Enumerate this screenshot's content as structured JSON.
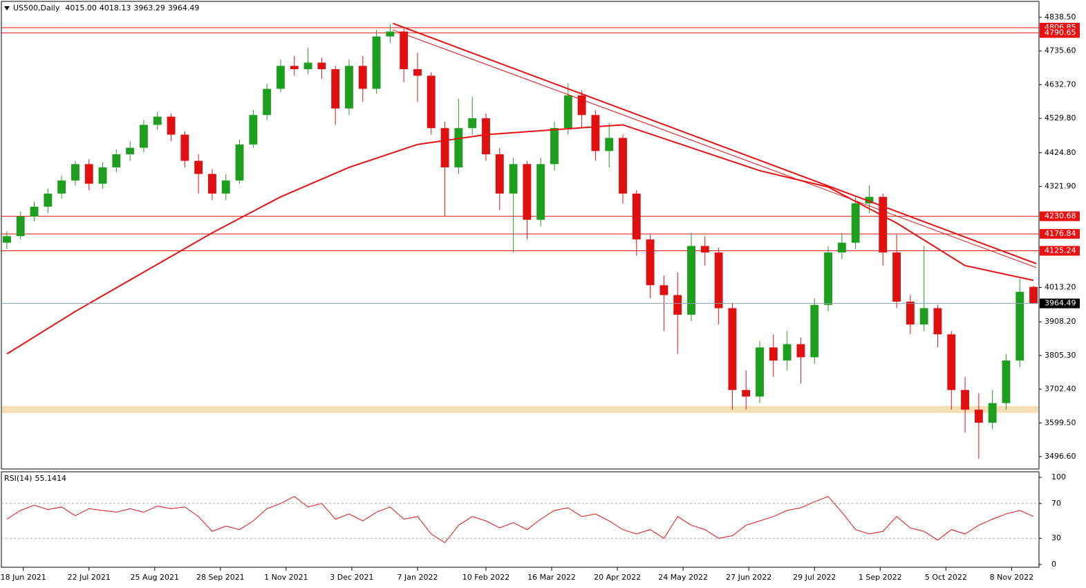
{
  "chart_data": {
    "type": "candlestick",
    "title": "US500,Daily",
    "x": [
      0,
      5,
      10,
      15,
      20,
      25,
      30,
      35,
      40,
      45,
      50,
      55,
      60,
      65,
      70,
      75,
      80,
      85,
      90,
      95,
      100,
      105,
      110,
      115,
      120,
      125,
      130,
      135,
      140,
      145,
      150,
      155,
      160,
      165,
      170,
      175,
      180,
      185,
      190,
      195,
      200,
      205,
      210,
      215,
      220,
      225,
      230,
      235,
      240,
      245,
      250,
      255,
      260,
      265,
      270,
      275,
      280,
      285,
      290,
      295,
      300,
      305,
      310,
      315,
      320,
      325,
      330,
      335,
      340,
      345,
      350,
      355,
      360,
      365,
      370,
      375
    ],
    "open": [
      4150,
      4170,
      4230,
      4260,
      4300,
      4340,
      4390,
      4330,
      4380,
      4420,
      4440,
      4510,
      4535,
      4480,
      4400,
      4360,
      4300,
      4340,
      4450,
      4540,
      4620,
      4690,
      4680,
      4700,
      4680,
      4560,
      4690,
      4620,
      4780,
      4795,
      4680,
      4660,
      4500,
      4380,
      4500,
      4530,
      4420,
      4300,
      4390,
      4220,
      4390,
      4500,
      4600,
      4540,
      4430,
      4470,
      4300,
      4160,
      4020,
      3990,
      3930,
      4140,
      4120,
      3950,
      3700,
      3680,
      3830,
      3790,
      3840,
      3800,
      3960,
      4120,
      4150,
      4270,
      4290,
      4120,
      3970,
      3900,
      3950,
      3870,
      3700,
      3640,
      3600,
      3660,
      3790,
      4015.0
    ],
    "high": [
      4185,
      4245,
      4275,
      4315,
      4355,
      4400,
      4405,
      4395,
      4435,
      4460,
      4525,
      4550,
      4545,
      4490,
      4420,
      4375,
      4360,
      4465,
      4555,
      4635,
      4710,
      4720,
      4745,
      4715,
      4690,
      4710,
      4720,
      4800,
      4818,
      4805,
      4730,
      4670,
      4520,
      4590,
      4595,
      4545,
      4440,
      4410,
      4400,
      4410,
      4520,
      4637,
      4615,
      4555,
      4515,
      4480,
      4310,
      4175,
      4050,
      4060,
      4180,
      4170,
      4135,
      3965,
      3760,
      3850,
      3870,
      3880,
      3860,
      3980,
      4140,
      4180,
      4290,
      4325,
      4300,
      4175,
      3990,
      4140,
      3960,
      3880,
      3740,
      3690,
      3700,
      3810,
      4040,
      4018.13
    ],
    "low": [
      4130,
      4160,
      4215,
      4240,
      4285,
      4325,
      4310,
      4315,
      4365,
      4400,
      4425,
      4495,
      4460,
      4380,
      4300,
      4280,
      4280,
      4330,
      4440,
      4525,
      4610,
      4660,
      4665,
      4650,
      4510,
      4540,
      4580,
      4605,
      4760,
      4640,
      4580,
      4480,
      4230,
      4360,
      4480,
      4400,
      4250,
      4120,
      4160,
      4200,
      4370,
      4480,
      4500,
      4400,
      4380,
      4270,
      4110,
      3980,
      3880,
      3810,
      3910,
      4080,
      3900,
      3640,
      3640,
      3660,
      3740,
      3760,
      3720,
      3780,
      3940,
      4100,
      4130,
      4240,
      4080,
      3950,
      3870,
      3880,
      3830,
      3640,
      3570,
      3490,
      3580,
      3640,
      3770,
      3963.29
    ],
    "close": [
      4170,
      4230,
      4260,
      4300,
      4340,
      4390,
      4330,
      4380,
      4420,
      4440,
      4510,
      4535,
      4480,
      4400,
      4360,
      4300,
      4340,
      4450,
      4540,
      4620,
      4690,
      4680,
      4700,
      4680,
      4560,
      4690,
      4620,
      4780,
      4795,
      4680,
      4660,
      4500,
      4380,
      4500,
      4530,
      4420,
      4300,
      4390,
      4220,
      4390,
      4500,
      4600,
      4540,
      4430,
      4470,
      4300,
      4160,
      4020,
      3990,
      3930,
      4140,
      4120,
      3950,
      3700,
      3680,
      3830,
      3790,
      3840,
      3800,
      3960,
      4120,
      4150,
      4270,
      4290,
      4120,
      3970,
      3900,
      3950,
      3870,
      3700,
      3640,
      3600,
      3660,
      3790,
      4000,
      3964.49
    ],
    "header_labels": [
      "4015.00",
      "4018.13",
      "3963.29",
      "3964.49"
    ],
    "up_color": "#1e9e1e",
    "down_color": "#e01010",
    "xlim": [
      -2,
      377
    ],
    "ylim": [
      3458.6,
      4887.1
    ],
    "yticks": [
      {
        "value": 4838.5,
        "label": "4838.50"
      },
      {
        "value": 4735.6,
        "label": "4735.60"
      },
      {
        "value": 4632.7,
        "label": "4632.70"
      },
      {
        "value": 4529.8,
        "label": "4529.80"
      },
      {
        "value": 4424.8,
        "label": "4424.80"
      },
      {
        "value": 4321.9,
        "label": "4321.90"
      },
      {
        "value": 4013.2,
        "label": "4013.20"
      },
      {
        "value": 3908.2,
        "label": "3908.20"
      },
      {
        "value": 3805.3,
        "label": "3805.30"
      },
      {
        "value": 3702.4,
        "label": "3702.40"
      },
      {
        "value": 3599.5,
        "label": "3599.50"
      },
      {
        "value": 3496.6,
        "label": "3496.60"
      }
    ],
    "xticks": [
      {
        "value": 6,
        "label": "18 Jun 2021"
      },
      {
        "value": 30,
        "label": "22 Jul 2021"
      },
      {
        "value": 54,
        "label": "25 Aug 2021"
      },
      {
        "value": 78,
        "label": "28 Sep 2021"
      },
      {
        "value": 102,
        "label": "1 Nov 2021"
      },
      {
        "value": 126,
        "label": "3 Dec 2021"
      },
      {
        "value": 150,
        "label": "7 Jan 2022"
      },
      {
        "value": 175,
        "label": "10 Feb 2022"
      },
      {
        "value": 199,
        "label": "16 Mar 2022"
      },
      {
        "value": 223,
        "label": "20 Apr 2022"
      },
      {
        "value": 247,
        "label": "24 May 2022"
      },
      {
        "value": 271,
        "label": "27 Jun 2022"
      },
      {
        "value": 295,
        "label": "29 Jul 2022"
      },
      {
        "value": 319,
        "label": "1 Sep 2022"
      },
      {
        "value": 343,
        "label": "5 Oct 2022"
      },
      {
        "value": 367,
        "label": "8 Nov 2022"
      }
    ],
    "ma": {
      "color": "#e81010",
      "x": [
        0,
        25,
        50,
        75,
        100,
        125,
        150,
        175,
        200,
        225,
        250,
        275,
        300,
        325,
        350,
        375
      ],
      "values": [
        3810,
        3940,
        4060,
        4180,
        4290,
        4380,
        4450,
        4480,
        4495,
        4510,
        4440,
        4370,
        4320,
        4210,
        4080,
        4035
      ]
    },
    "trendlines": [
      {
        "color": "#e81010",
        "x": [
          141,
          376
        ],
        "values": [
          4820,
          4086
        ]
      },
      {
        "color": "#e81010",
        "x": [
          141,
          376
        ],
        "values": [
          4800,
          4074
        ]
      }
    ],
    "levels": [
      {
        "value": 4806.85,
        "color": "#e81010"
      },
      {
        "value": 4790.65,
        "color": "#e81010"
      },
      {
        "value": 4230.68,
        "color": "#e81010"
      },
      {
        "value": 4176.84,
        "color": "#e81010"
      },
      {
        "value": 4125.24,
        "color": "#e81010"
      }
    ],
    "price_line_color": "#8aa0b0",
    "zone": {
      "range": [
        3630,
        3651
      ],
      "color": "#f5deb3"
    },
    "rsi": {
      "label": "RSI(14)",
      "color": "#e81010",
      "ylim": [
        0,
        100
      ],
      "yticks": [
        100,
        70,
        30,
        0
      ],
      "levels": [
        70,
        30
      ],
      "values": [
        52,
        62,
        68,
        63,
        66,
        56,
        64,
        62,
        60,
        64,
        60,
        67,
        64,
        66,
        55,
        38,
        44,
        40,
        50,
        64,
        70,
        78,
        66,
        70,
        52,
        58,
        50,
        60,
        66,
        52,
        55,
        35,
        25,
        45,
        55,
        50,
        42,
        48,
        40,
        52,
        62,
        65,
        55,
        58,
        50,
        40,
        35,
        40,
        30,
        55,
        45,
        40,
        30,
        33,
        45,
        50,
        55,
        62,
        65,
        72,
        78,
        60,
        40,
        35,
        38,
        55,
        42,
        38,
        28,
        40,
        35,
        45,
        52,
        58,
        62,
        55.1414
      ]
    }
  }
}
